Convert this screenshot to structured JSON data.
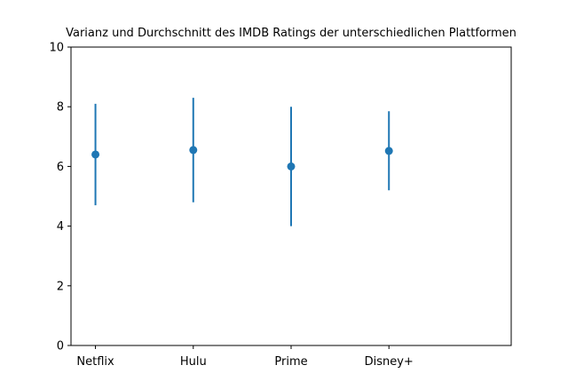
{
  "chart_data": {
    "type": "scatter",
    "title": "Varianz und Durchschnitt des IMDB Ratings der unterschiedlichen Plattformen",
    "xlabel": "",
    "ylabel": "",
    "categories": [
      "Netflix",
      "Hulu",
      "Prime",
      "Disney+"
    ],
    "series": [
      {
        "mean": [
          6.4,
          6.55,
          6.0,
          6.52
        ],
        "error_low": [
          4.7,
          4.8,
          4.0,
          5.2
        ],
        "error_high": [
          8.1,
          8.3,
          8.0,
          7.85
        ]
      }
    ],
    "ylim": [
      0,
      10
    ],
    "yticks": [
      "0",
      "2",
      "4",
      "6",
      "8",
      "10"
    ],
    "grid": false,
    "color": "#1f77b4"
  }
}
